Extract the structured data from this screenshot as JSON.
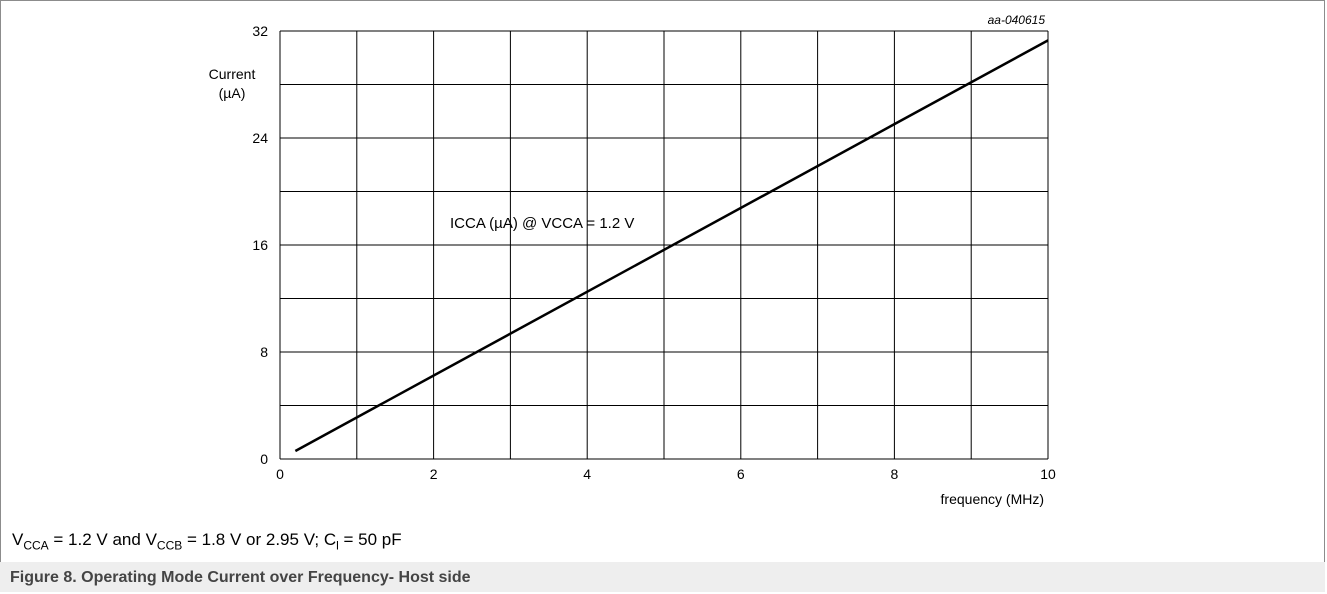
{
  "chart_data": {
    "type": "line",
    "ref_code": "aa-040615",
    "xlabel": "frequency (MHz)",
    "ylabel_line1": "Current",
    "ylabel_line2": "(µA)",
    "xlim": [
      0,
      10
    ],
    "ylim": [
      0,
      32
    ],
    "x_ticks": [
      0,
      2,
      4,
      6,
      8,
      10
    ],
    "y_ticks": [
      0,
      8,
      16,
      24,
      32
    ],
    "x_grid_step": 1,
    "y_grid_step": 4,
    "grid": true,
    "series": [
      {
        "name": "ICCA (µA) @ VCCA = 1.2 V",
        "color": "#000000",
        "x": [
          0.2,
          10
        ],
        "y": [
          0.6,
          31.3
        ]
      }
    ]
  },
  "conditions": {
    "v1_main": "V",
    "v1_sub": "CCA",
    "v1_rest": " = 1.2 V and V",
    "v2_sub": "CCB",
    "v2_rest": " = 1.8 V or 2.95 V; C",
    "c_sub": "l",
    "c_rest": " = 50 pF"
  },
  "caption": "Figure 8.  Operating Mode Current over Frequency- Host side"
}
